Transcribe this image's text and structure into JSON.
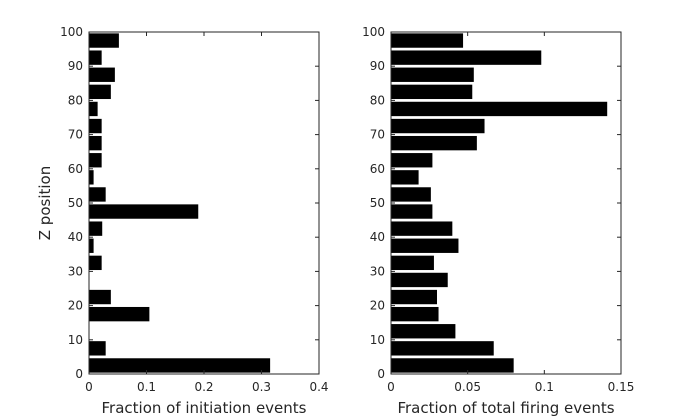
{
  "chart_data": [
    {
      "type": "bar",
      "orientation": "horizontal",
      "title": "",
      "xlabel": "Fraction of initiation events",
      "ylabel": "Z position",
      "xlim": [
        0,
        0.4
      ],
      "ylim": [
        0,
        100
      ],
      "xticks": [
        0,
        0.1,
        0.2,
        0.3,
        0.4
      ],
      "xtick_labels": [
        "0",
        "0.1",
        "0.2",
        "0.3",
        "0.4"
      ],
      "yticks": [
        0,
        10,
        20,
        30,
        40,
        50,
        60,
        70,
        80,
        90,
        100
      ],
      "ytick_labels": [
        "0",
        "10",
        "20",
        "30",
        "40",
        "50",
        "60",
        "70",
        "80",
        "90",
        "100"
      ],
      "bar_height": 4.2,
      "bars": [
        {
          "y": 2.5,
          "value": 0.315
        },
        {
          "y": 7.5,
          "value": 0.029
        },
        {
          "y": 17.5,
          "value": 0.105
        },
        {
          "y": 22.5,
          "value": 0.038
        },
        {
          "y": 32.5,
          "value": 0.022
        },
        {
          "y": 37.5,
          "value": 0.008
        },
        {
          "y": 42.5,
          "value": 0.023
        },
        {
          "y": 47.5,
          "value": 0.19
        },
        {
          "y": 52.5,
          "value": 0.029
        },
        {
          "y": 57.5,
          "value": 0.008
        },
        {
          "y": 62.5,
          "value": 0.022
        },
        {
          "y": 67.5,
          "value": 0.022
        },
        {
          "y": 72.5,
          "value": 0.022
        },
        {
          "y": 77.5,
          "value": 0.015
        },
        {
          "y": 82.5,
          "value": 0.038
        },
        {
          "y": 87.5,
          "value": 0.045
        },
        {
          "y": 92.5,
          "value": 0.022
        },
        {
          "y": 97.5,
          "value": 0.052
        }
      ],
      "grid": false,
      "color": "#000000"
    },
    {
      "type": "bar",
      "orientation": "horizontal",
      "title": "",
      "xlabel": "Fraction of total firing events",
      "ylabel": "",
      "xlim": [
        0,
        0.15
      ],
      "ylim": [
        0,
        100
      ],
      "xticks": [
        0,
        0.05,
        0.1,
        0.15
      ],
      "xtick_labels": [
        "0",
        "0.05",
        "0.1",
        "0.15"
      ],
      "yticks": [
        0,
        10,
        20,
        30,
        40,
        50,
        60,
        70,
        80,
        90,
        100
      ],
      "ytick_labels": [
        "0",
        "10",
        "20",
        "30",
        "40",
        "50",
        "60",
        "70",
        "80",
        "90",
        "100"
      ],
      "bar_height": 4.2,
      "bars": [
        {
          "y": 2.5,
          "value": 0.08
        },
        {
          "y": 7.5,
          "value": 0.067
        },
        {
          "y": 12.5,
          "value": 0.042
        },
        {
          "y": 17.5,
          "value": 0.031
        },
        {
          "y": 22.5,
          "value": 0.03
        },
        {
          "y": 27.5,
          "value": 0.037
        },
        {
          "y": 32.5,
          "value": 0.028
        },
        {
          "y": 37.5,
          "value": 0.044
        },
        {
          "y": 42.5,
          "value": 0.04
        },
        {
          "y": 47.5,
          "value": 0.027
        },
        {
          "y": 52.5,
          "value": 0.026
        },
        {
          "y": 57.5,
          "value": 0.018
        },
        {
          "y": 62.5,
          "value": 0.027
        },
        {
          "y": 67.5,
          "value": 0.056
        },
        {
          "y": 72.5,
          "value": 0.061
        },
        {
          "y": 77.5,
          "value": 0.141
        },
        {
          "y": 82.5,
          "value": 0.053
        },
        {
          "y": 87.5,
          "value": 0.054
        },
        {
          "y": 92.5,
          "value": 0.098
        },
        {
          "y": 97.5,
          "value": 0.047
        }
      ],
      "grid": false,
      "color": "#000000"
    }
  ]
}
